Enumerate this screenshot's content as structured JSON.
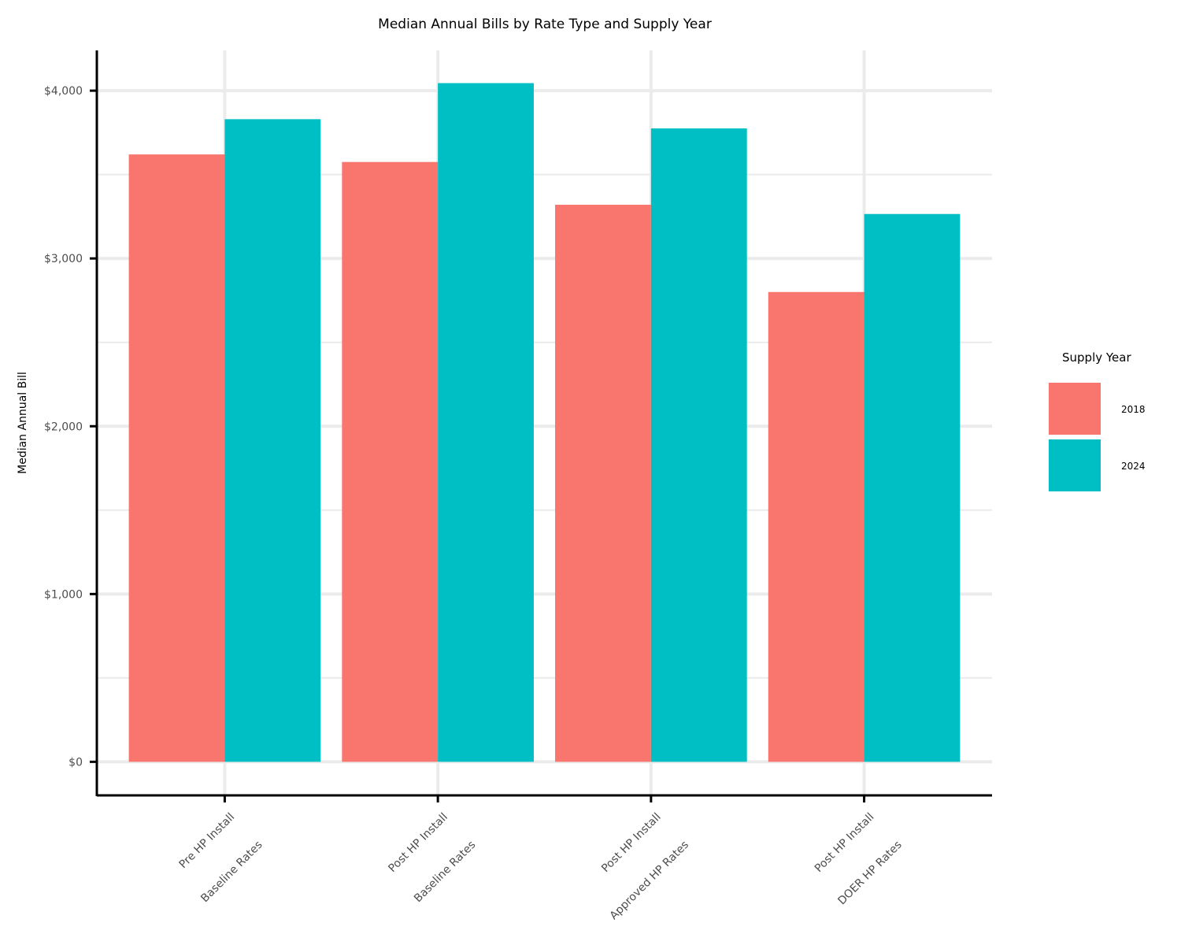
{
  "chart_data": {
    "type": "bar",
    "title": "Median Annual Bills by Rate Type and Supply Year",
    "xlabel": "",
    "ylabel": "Median Annual Bill",
    "ylim": [
      -200,
      4240
    ],
    "y_ticks": [
      0,
      1000,
      2000,
      3000,
      4000
    ],
    "y_tick_labels": [
      "$0",
      "$1,000",
      "$2,000",
      "$3,000",
      "$4,000"
    ],
    "y_minor_ticks": [
      500,
      1500,
      2500,
      3500
    ],
    "grid": true,
    "categories": [
      [
        "Pre HP Install",
        "Baseline Rates"
      ],
      [
        "Post HP Install",
        "Baseline Rates"
      ],
      [
        "Post HP Install",
        "Approved HP Rates"
      ],
      [
        "Post HP Install",
        "DOER HP Rates"
      ]
    ],
    "series": [
      {
        "name": "2018",
        "color": "#F8766D",
        "values": [
          3620,
          3575,
          3320,
          2800
        ]
      },
      {
        "name": "2024",
        "color": "#00BFC4",
        "values": [
          3830,
          4045,
          3775,
          3265
        ]
      }
    ],
    "legend": {
      "title": "Supply Year",
      "position": "right"
    }
  }
}
